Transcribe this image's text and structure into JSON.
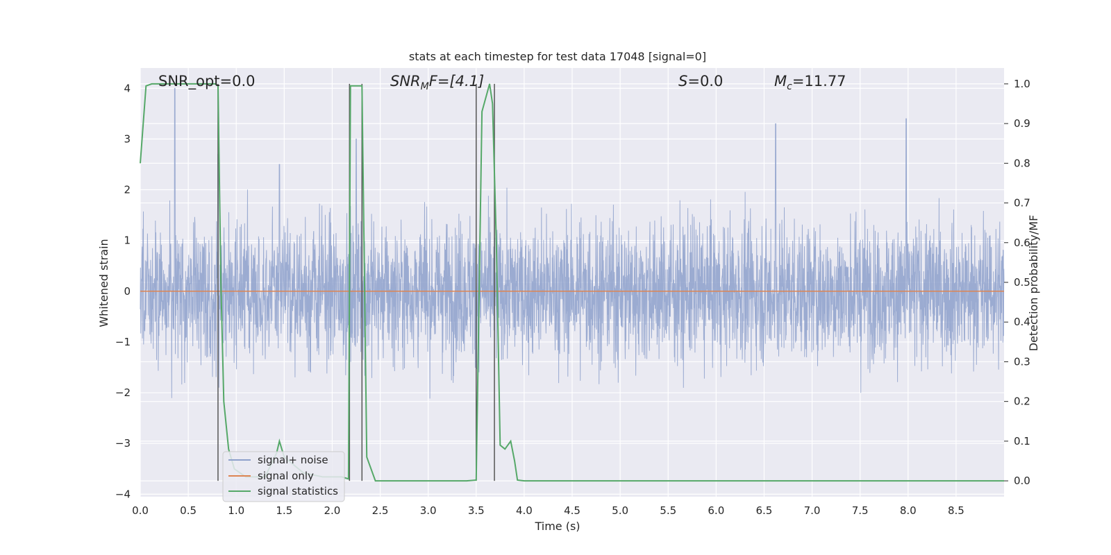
{
  "chart_data": {
    "type": "line",
    "title": "stats at each timestep for test data 17048 [signal=0]",
    "xlabel": "Time (s)",
    "ylabel": "Whitened strain",
    "y2label": "Detection probability/MF",
    "xlim": [
      0.0,
      9.0
    ],
    "ylim": [
      -4.05,
      4.4
    ],
    "y2lim": [
      -0.04,
      1.04
    ],
    "x_ticks": [
      "0.0",
      "0.5",
      "1.0",
      "1.5",
      "2.0",
      "2.5",
      "3.0",
      "3.5",
      "4.0",
      "4.5",
      "5.0",
      "5.5",
      "6.0",
      "6.5",
      "7.0",
      "7.5",
      "8.0",
      "8.5"
    ],
    "y_ticks": [
      "4",
      "3",
      "2",
      "1",
      "0",
      "−1",
      "−2",
      "−3",
      "−4"
    ],
    "y_tick_values": [
      4,
      3,
      2,
      1,
      0,
      -1,
      -2,
      -3,
      -4
    ],
    "y2_ticks": [
      "1.0",
      "0.9",
      "0.8",
      "0.7",
      "0.6",
      "0.5",
      "0.4",
      "0.3",
      "0.2",
      "0.1",
      "0.0"
    ],
    "y2_tick_values": [
      1.0,
      0.9,
      0.8,
      0.7,
      0.6,
      0.5,
      0.4,
      0.3,
      0.2,
      0.1,
      0.0
    ],
    "grid": true,
    "legend_position": "lower-left",
    "legend": [
      "signal+ noise",
      "signal only",
      "signal statistics"
    ],
    "annotations": {
      "snr_opt": "SNR_opt=0.0",
      "snr_mf_main": "SNR",
      "snr_mf_sub": "M",
      "snr_mf_rest": "F=[4.1]",
      "s_main": "S",
      "s_rest": "=0.0",
      "mc_main": "M",
      "mc_sub": "c",
      "mc_rest": "=11.77"
    },
    "vertical_lines_x": [
      0.81,
      2.18,
      2.31,
      3.5,
      3.69
    ],
    "series": [
      {
        "name": "signal+ noise",
        "color": "#8da0cb",
        "amplitude_envelope": {
          "core": 0.9,
          "typical_peak": 2.3,
          "max": 4.0,
          "min": -3.5
        },
        "peaks_x": [
          0.36,
          0.81,
          1.45,
          2.25,
          6.62,
          7.98
        ],
        "peaks_y": [
          4.0,
          2.7,
          2.5,
          3.0,
          3.3,
          3.4
        ]
      },
      {
        "name": "signal only",
        "color": "#dd8452",
        "x": [
          0.0,
          9.0
        ],
        "y": [
          0.0,
          0.0
        ]
      },
      {
        "name": "signal statistics",
        "color": "#55a868",
        "x": [
          0.0,
          0.06,
          0.12,
          0.2,
          0.3,
          0.45,
          0.6,
          0.7,
          0.78,
          0.81,
          0.84,
          0.87,
          0.92,
          0.98,
          1.1,
          1.3,
          1.42,
          1.45,
          1.5,
          1.7,
          1.9,
          2.1,
          2.17,
          2.19,
          2.23,
          2.27,
          2.31,
          2.36,
          2.45,
          3.0,
          3.4,
          3.5,
          3.56,
          3.64,
          3.67,
          3.71,
          3.75,
          3.8,
          3.86,
          3.9,
          3.93,
          4.0,
          5.0,
          6.0,
          7.0,
          8.0,
          9.0
        ],
        "y": [
          0.8,
          0.995,
          1.0,
          1.0,
          1.0,
          1.0,
          1.0,
          1.0,
          1.0,
          0.995,
          0.5,
          0.2,
          0.08,
          0.03,
          0.01,
          0.01,
          0.07,
          0.1,
          0.06,
          0.02,
          0.01,
          0.01,
          0.005,
          0.995,
          0.995,
          0.995,
          0.995,
          0.06,
          0.0,
          0.0,
          0.0,
          0.002,
          0.93,
          1.0,
          0.95,
          0.6,
          0.09,
          0.08,
          0.1,
          0.05,
          0.002,
          0.0,
          0.0,
          0.0,
          0.0,
          0.0,
          0.0
        ]
      }
    ]
  }
}
